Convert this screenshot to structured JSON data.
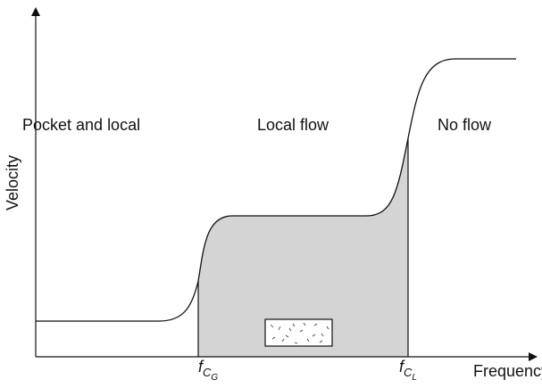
{
  "axes": {
    "y_label": "Velocity",
    "x_label": "Frequency"
  },
  "regions": [
    {
      "label": "Pocket and local"
    },
    {
      "label": "Local flow"
    },
    {
      "label": "No flow"
    }
  ],
  "markers": [
    {
      "base": "f",
      "sub": "C",
      "subsub": "G"
    },
    {
      "base": "f",
      "sub": "C",
      "subsub": "L"
    }
  ]
}
